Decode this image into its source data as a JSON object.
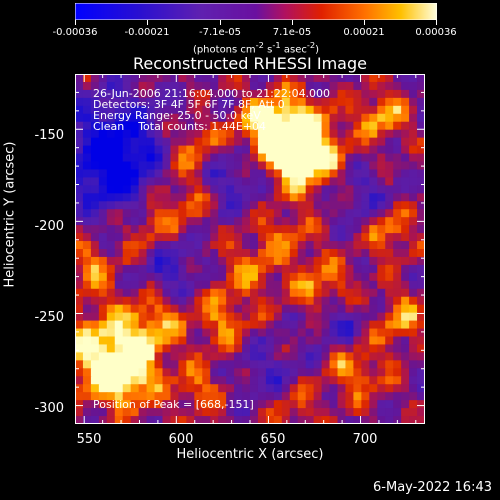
{
  "window": {
    "footer_timestamp": "6-May-2022 16:43"
  },
  "colorbar": {
    "ticks": [
      "-0.00036",
      "-0.00021",
      "-7.1e-05",
      "7.1e-05",
      "0.00021",
      "0.00036"
    ],
    "units_html": "(photons cm<sup>-2</sup> s<sup>-1</sup> asec<sup>-2</sup>)",
    "units": "(photons cm-2 s-1 asec-2)",
    "range": [
      -0.00036,
      0.00036
    ],
    "colormap": [
      "#0000ff",
      "#3a10c0",
      "#5a20b0",
      "#7a30a0",
      "#a02050",
      "#d03000",
      "#ff6000",
      "#ffb000",
      "#ffff80",
      "#ffffff"
    ]
  },
  "chart_data": {
    "type": "heatmap",
    "title": "Reconstructed RHESSI Image",
    "xlabel": "Heliocentric X (arcsec)",
    "ylabel": "Heliocentric Y (arcsec)",
    "xlim": [
      545,
      735
    ],
    "ylim": [
      -310,
      -120
    ],
    "x_ticks": [
      "550",
      "600",
      "650",
      "700"
    ],
    "y_ticks": [
      "-150",
      "-200",
      "-250",
      "-300"
    ],
    "annotations": [
      "26-Jun-2006 21:16:04.000 to 21:22:04.000",
      "Detectors: 3F 4F 5F 6F 7F 8F, Att 0",
      "Energy Range: 25.0 - 50.0 keV",
      "Clean    Total counts: 1.44E+04"
    ],
    "peak_label": "Position of Peak = [668,-151]",
    "peak_position": [
      668,
      -151
    ],
    "grid": false
  }
}
